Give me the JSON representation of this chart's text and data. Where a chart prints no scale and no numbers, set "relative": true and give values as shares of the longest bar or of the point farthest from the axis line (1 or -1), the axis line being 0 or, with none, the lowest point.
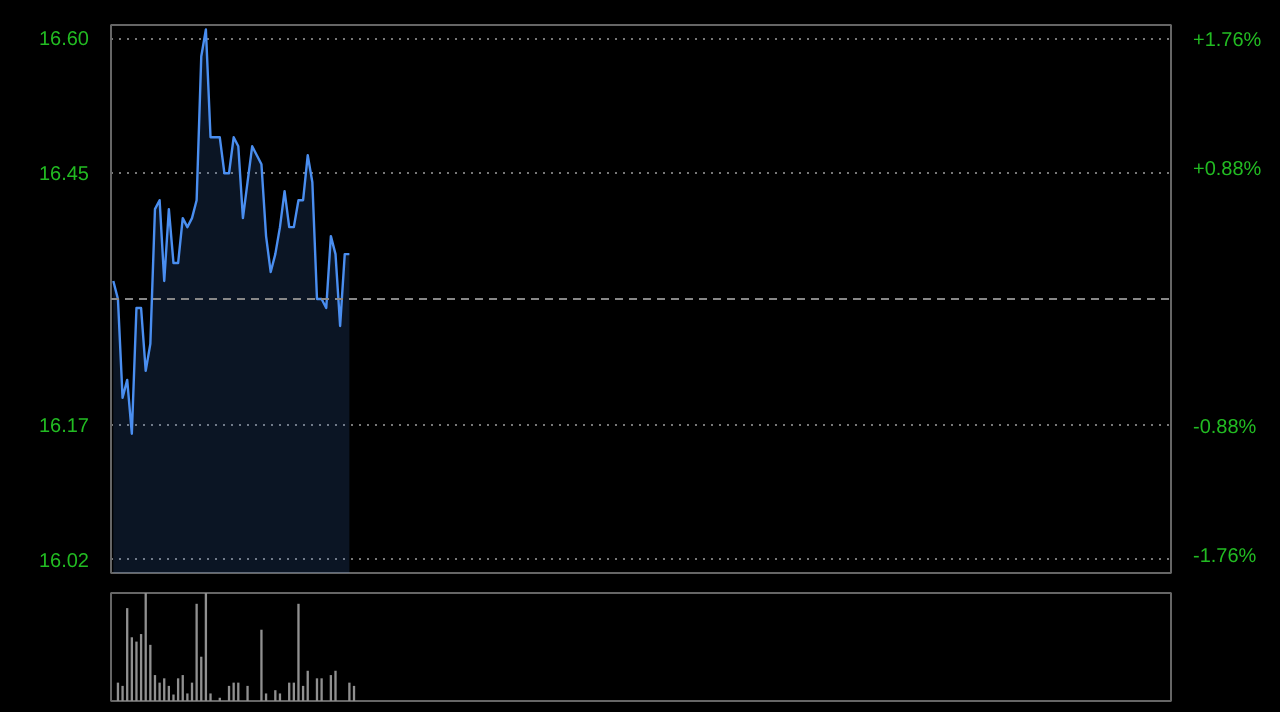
{
  "chart_data": [
    {
      "type": "area",
      "categories": [
        null,
        null,
        null,
        null,
        null,
        null,
        null,
        null,
        null,
        null,
        null,
        null,
        null,
        null,
        null,
        null,
        null,
        null,
        null,
        null,
        null,
        null,
        null,
        null,
        null,
        null,
        null,
        null,
        null,
        null,
        null,
        null,
        null,
        null,
        null,
        null,
        null,
        null,
        null,
        null,
        null,
        null,
        null,
        null,
        null,
        null,
        null,
        null,
        null,
        null,
        null,
        null,
        null,
        null,
        null,
        null,
        null,
        null,
        null,
        null,
        null,
        null,
        null,
        null,
        null,
        null,
        null,
        null,
        null,
        null,
        null,
        null,
        null,
        null,
        null,
        null,
        null,
        null,
        null,
        null,
        null,
        null,
        null,
        null,
        null,
        null,
        null,
        null,
        null,
        null,
        null,
        null,
        null,
        null,
        null,
        null,
        null,
        null,
        null,
        null,
        null,
        null,
        null,
        null,
        null,
        null,
        null,
        null,
        null,
        null,
        null,
        null,
        null,
        null,
        null,
        null,
        null,
        null,
        null,
        null,
        null,
        null,
        null,
        null,
        null,
        null,
        null,
        null,
        null,
        null,
        null,
        null,
        null,
        null,
        null,
        null,
        null,
        null,
        null,
        null,
        null,
        null,
        null,
        null,
        null,
        null,
        null,
        null,
        null,
        null,
        null,
        null,
        null,
        null,
        null,
        null,
        null,
        null,
        null,
        null,
        null,
        null,
        null,
        null,
        null,
        null,
        null,
        null,
        null,
        null,
        null,
        null,
        null,
        null,
        null,
        null,
        null,
        null,
        null,
        null,
        null,
        null,
        null,
        null,
        null,
        null,
        null,
        null,
        null,
        null,
        null,
        null,
        null,
        null,
        null,
        null,
        null,
        null,
        null,
        null,
        null,
        null,
        null,
        null,
        null,
        null,
        null,
        null,
        null,
        null,
        null,
        null,
        null,
        null,
        null,
        null,
        null,
        null,
        null,
        null,
        null,
        null,
        null,
        null,
        null,
        null,
        null,
        null,
        null
      ],
      "ylim": [
        16.005,
        16.615
      ],
      "yticks": [
        {
          "value": 16.02,
          "label": "16.02"
        },
        {
          "value": 16.17,
          "label": "16.17"
        },
        {
          "value": 16.45,
          "label": "16.45"
        },
        {
          "value": 16.6,
          "label": "16.60"
        }
      ],
      "y2lim": [
        -1.87,
        1.87
      ],
      "y2ticks": [
        {
          "value": -1.76,
          "label": "-1.76%"
        },
        {
          "value": -0.88,
          "label": "-0.88%"
        },
        {
          "value": 0.88,
          "label": "+0.88%"
        },
        {
          "value": 1.76,
          "label": "+1.76%"
        }
      ],
      "ref_lines": [
        {
          "axis": "y",
          "value": 16.31,
          "color": "#888888",
          "line_style": "dashed"
        }
      ],
      "grid": "y",
      "tick_labels": "y",
      "series": [
        {
          "color": "#4a8ef0",
          "values": [
            16.33,
            16.31,
            16.2,
            16.22,
            16.16,
            16.3,
            16.3,
            16.23,
            16.26,
            16.41,
            16.42,
            16.33,
            16.41,
            16.35,
            16.35,
            16.4,
            16.39,
            16.4,
            16.42,
            16.58,
            16.61,
            16.49,
            16.49,
            16.49,
            16.45,
            16.45,
            16.49,
            16.48,
            16.4,
            16.44,
            16.48,
            16.47,
            16.46,
            16.38,
            16.34,
            16.36,
            16.39,
            16.43,
            16.39,
            16.39,
            16.42,
            16.42,
            16.47,
            16.44,
            16.31,
            16.31,
            16.3,
            16.38,
            16.36,
            16.28,
            16.36,
            16.36,
            null,
            null,
            null,
            null,
            null,
            null,
            null,
            null,
            null,
            null,
            null,
            null,
            null,
            null,
            null,
            null,
            null,
            null,
            null,
            null,
            null,
            null,
            null,
            null,
            null,
            null,
            null,
            null,
            null,
            null,
            null,
            null,
            null,
            null,
            null,
            null,
            null,
            null,
            null,
            null,
            null,
            null,
            null,
            null,
            null,
            null,
            null,
            null,
            null,
            null,
            null,
            null,
            null,
            null,
            null,
            null,
            null,
            null,
            null,
            null,
            null,
            null,
            null,
            null,
            null,
            null,
            null,
            null,
            null,
            null,
            null,
            null,
            null,
            null,
            null,
            null,
            null,
            null,
            null,
            null,
            null,
            null,
            null,
            null,
            null,
            null,
            null,
            null,
            null,
            null,
            null,
            null,
            null,
            null,
            null,
            null,
            null,
            null,
            null,
            null,
            null,
            null,
            null,
            null,
            null,
            null,
            null,
            null,
            null,
            null,
            null,
            null,
            null,
            null,
            null,
            null,
            null,
            null,
            null,
            null,
            null,
            null,
            null,
            null,
            null,
            null,
            null,
            null,
            null,
            null,
            null,
            null,
            null,
            null,
            null,
            null,
            null,
            null,
            null,
            null,
            null,
            null,
            null,
            null,
            null,
            null,
            null,
            null,
            null,
            null,
            null,
            null,
            null,
            null,
            null,
            null,
            null,
            null,
            null,
            null,
            null,
            null,
            null,
            null,
            null,
            null,
            null,
            null,
            null,
            null,
            null,
            null,
            null,
            null,
            null,
            null,
            null
          ]
        }
      ]
    },
    {
      "type": "bar",
      "relative": true,
      "tick_labels": false,
      "categories": [
        null,
        null,
        null,
        null,
        null,
        null,
        null,
        null,
        null,
        null,
        null,
        null,
        null,
        null,
        null,
        null,
        null,
        null,
        null,
        null,
        null,
        null,
        null,
        null,
        null,
        null,
        null,
        null,
        null,
        null,
        null,
        null,
        null,
        null,
        null,
        null,
        null,
        null,
        null,
        null,
        null,
        null,
        null,
        null,
        null,
        null,
        null,
        null,
        null,
        null,
        null,
        null,
        null,
        null,
        null,
        null,
        null,
        null,
        null,
        null,
        null,
        null,
        null,
        null,
        null,
        null,
        null,
        null,
        null,
        null,
        null,
        null,
        null,
        null,
        null,
        null,
        null,
        null,
        null,
        null,
        null,
        null,
        null,
        null,
        null,
        null,
        null,
        null,
        null,
        null,
        null,
        null,
        null,
        null,
        null,
        null,
        null,
        null,
        null,
        null,
        null,
        null,
        null,
        null,
        null,
        null,
        null,
        null,
        null,
        null,
        null,
        null,
        null,
        null,
        null,
        null,
        null,
        null,
        null,
        null,
        null,
        null,
        null,
        null,
        null,
        null,
        null,
        null,
        null,
        null,
        null,
        null,
        null,
        null,
        null,
        null,
        null,
        null,
        null,
        null,
        null,
        null,
        null,
        null,
        null,
        null,
        null,
        null,
        null,
        null,
        null,
        null,
        null,
        null,
        null,
        null,
        null,
        null,
        null,
        null,
        null,
        null,
        null,
        null,
        null,
        null,
        null,
        null,
        null,
        null,
        null,
        null,
        null,
        null,
        null,
        null,
        null,
        null,
        null,
        null,
        null,
        null,
        null,
        null,
        null,
        null,
        null,
        null,
        null,
        null,
        null,
        null,
        null,
        null,
        null,
        null,
        null,
        null,
        null,
        null,
        null,
        null,
        null,
        null,
        null,
        null,
        null,
        null,
        null,
        null,
        null,
        null,
        null,
        null,
        null,
        null,
        null,
        null,
        null,
        null,
        null,
        null,
        null,
        null,
        null,
        null,
        null,
        null,
        null
      ],
      "series": [
        {
          "color": "#909090",
          "values": [
            null,
            0.17,
            0.14,
            0.86,
            0.59,
            0.55,
            0.62,
            1.0,
            0.52,
            0.24,
            0.17,
            0.21,
            0.14,
            0.06,
            0.21,
            0.24,
            0.07,
            0.17,
            0.9,
            0.41,
            1.0,
            0.07,
            null,
            0.03,
            null,
            0.14,
            0.17,
            0.17,
            null,
            0.14,
            null,
            null,
            0.66,
            0.07,
            null,
            0.1,
            0.07,
            null,
            0.17,
            0.17,
            0.9,
            0.14,
            0.28,
            null,
            0.21,
            0.21,
            null,
            0.24,
            0.28,
            null,
            null,
            0.17,
            0.14,
            null,
            null,
            null,
            null,
            null,
            null,
            null,
            null,
            null,
            null,
            null,
            null,
            null,
            null,
            null,
            null,
            null,
            null,
            null,
            null,
            null,
            null,
            null,
            null,
            null,
            null,
            null,
            null,
            null,
            null,
            null,
            null,
            null,
            null,
            null,
            null,
            null,
            null,
            null,
            null,
            null,
            null,
            null,
            null,
            null,
            null,
            null,
            null,
            null,
            null,
            null,
            null,
            null,
            null,
            null,
            null,
            null,
            null,
            null,
            null,
            null,
            null,
            null,
            null,
            null,
            null,
            null,
            null,
            null,
            null,
            null,
            null,
            null,
            null,
            null,
            null,
            null,
            null,
            null,
            null,
            null,
            null,
            null,
            null,
            null,
            null,
            null,
            null,
            null,
            null,
            null,
            null,
            null,
            null,
            null,
            null,
            null,
            null,
            null,
            null,
            null,
            null,
            null,
            null,
            null,
            null,
            null,
            null,
            null,
            null,
            null,
            null,
            null,
            null,
            null,
            null,
            null,
            null,
            null,
            null,
            null,
            null,
            null,
            null,
            null,
            null,
            null,
            null,
            null,
            null,
            null,
            null,
            null,
            null,
            null,
            null,
            null,
            null,
            null,
            null,
            null,
            null,
            null,
            null,
            null,
            null,
            null,
            null,
            null,
            null,
            null,
            null,
            null,
            null,
            null,
            null,
            null,
            null,
            null,
            null,
            null,
            null,
            null,
            null,
            null,
            null,
            null,
            null,
            null,
            null,
            null,
            null,
            null,
            null,
            null,
            null
          ]
        }
      ]
    }
  ]
}
